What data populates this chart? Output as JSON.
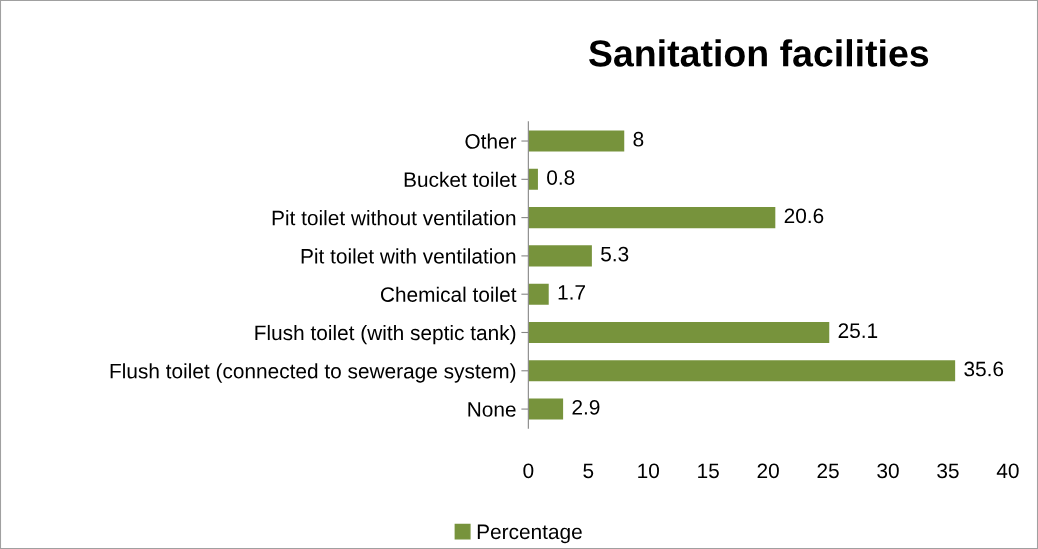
{
  "chart_data": {
    "type": "bar",
    "orientation": "horizontal",
    "title": "Sanitation facilities",
    "categories": [
      "Other",
      "Bucket toilet",
      "Pit toilet without ventilation",
      "Pit toilet with ventilation",
      "Chemical toilet",
      "Flush toilet (with septic tank)",
      "Flush toilet (connected to sewerage system)",
      "None"
    ],
    "series": [
      {
        "name": "Percentage",
        "color": "#77933c",
        "values": [
          8,
          0.8,
          20.6,
          5.3,
          1.7,
          25.1,
          35.6,
          2.9
        ]
      }
    ],
    "xlim": [
      0,
      40
    ],
    "xticks": [
      0,
      5,
      10,
      15,
      20,
      25,
      30,
      35,
      40
    ],
    "data_labels": true,
    "grid": false,
    "legend": "bottom"
  }
}
